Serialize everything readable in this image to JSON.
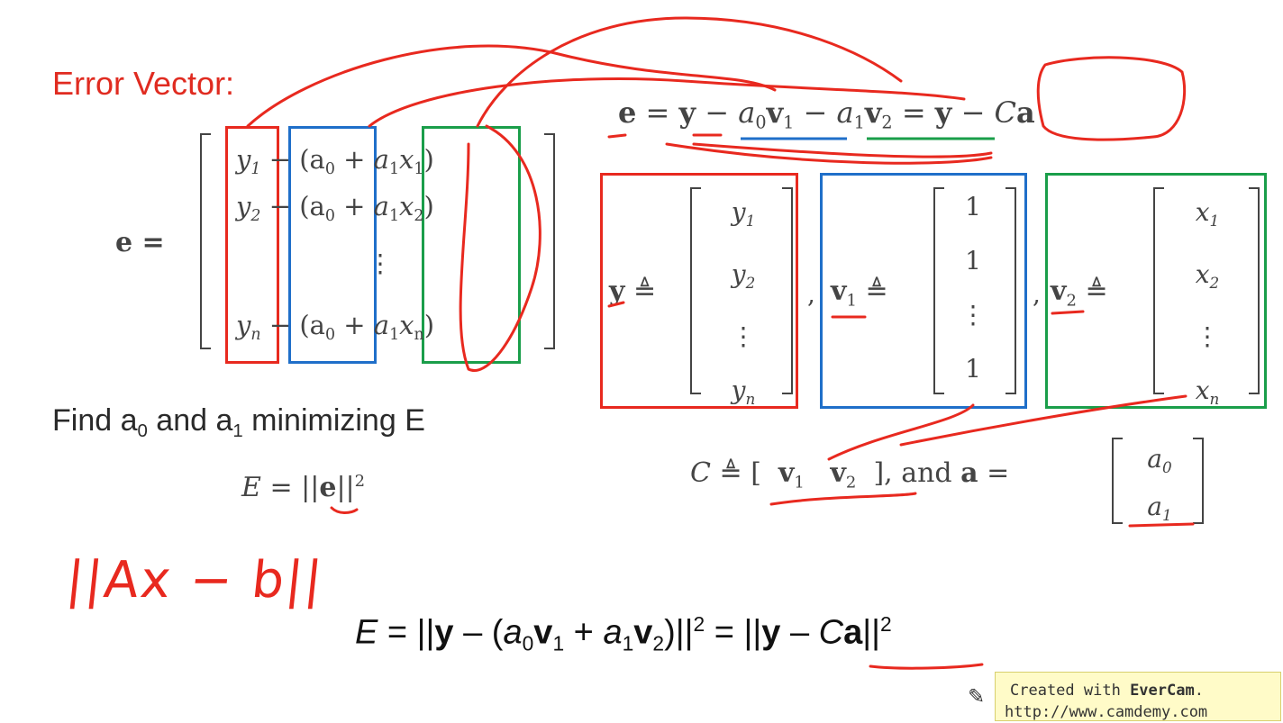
{
  "heading": {
    "error_vector": "Error Vector:"
  },
  "e_def": {
    "lhs": "e =",
    "rows": [
      {
        "y": "y",
        "ysub": "1",
        "mid": "− (a",
        "a0sub": "0",
        "plus": "+",
        "a1": "a",
        "a1sub": "1",
        "x": "x",
        "xsub": "1",
        "close": ")"
      },
      {
        "y": "y",
        "ysub": "2",
        "mid": "− (a",
        "a0sub": "0",
        "plus": "+",
        "a1": "a",
        "a1sub": "1",
        "x": "x",
        "xsub": "2",
        "close": ")"
      },
      {
        "y": "y",
        "ysub": "n",
        "mid": "− (a",
        "a0sub": "0",
        "plus": "+",
        "a1": "a",
        "a1sub": "1",
        "x": "x",
        "xsub": "n",
        "close": ")"
      }
    ],
    "vdots": "⋮"
  },
  "rhs_eq": {
    "e": "e",
    "eq1": "=",
    "y": "y",
    "minus1": "−",
    "a0": "a",
    "a0sub": "0",
    "v1": "v",
    "v1sub": "1",
    "minus2": "−",
    "a1": "a",
    "a1sub": "1",
    "v2": "v",
    "v2sub": "2",
    "eq2": "=",
    "y2": "y",
    "minus3": "−",
    "C": "C",
    "a": "a"
  },
  "defs": {
    "delta_eq": "≜",
    "comma": ",",
    "y_vec": {
      "label": "y",
      "entries": [
        "y",
        "y",
        "⋮",
        "y"
      ],
      "subs": [
        "1",
        "2",
        "",
        "n"
      ]
    },
    "v1_vec": {
      "label": "v",
      "label_sub": "1",
      "entries": [
        "1",
        "1",
        "⋮",
        "1"
      ]
    },
    "v2_vec": {
      "label": "v",
      "label_sub": "2",
      "entries": [
        "x",
        "x",
        "⋮",
        "x"
      ],
      "subs": [
        "1",
        "2",
        "",
        "n"
      ]
    }
  },
  "c_def": {
    "C": "C",
    "delta_eq": "≜",
    "v1": "v",
    "v1sub": "1",
    "v2": "v",
    "v2sub": "2",
    "and_text": "], and",
    "a": "a",
    "eq": "=",
    "a_entries": [
      "a",
      "a"
    ],
    "a_subs": [
      "0",
      "1"
    ]
  },
  "find": {
    "prefix": "Find a",
    "sub0": "0",
    "middle": " and a",
    "sub1": "1",
    "suffix": " minimizing E"
  },
  "E_def": {
    "E": "E",
    "eq": "= ||",
    "e": "e",
    "close": "||",
    "sup": "2"
  },
  "handwriting": {
    "text": "||Ax − b||"
  },
  "final_eq": {
    "E": "E",
    "eq1": " = ||",
    "y": "y",
    "minus": " – (",
    "a0": "a",
    "a0sub": "0",
    "v1": "v",
    "v1sub": "1",
    "plus": " + ",
    "a1": "a",
    "a1sub": "1",
    "v2": "v",
    "v2sub": "2",
    "close": ")||",
    "sup1": "2",
    "eq2": " = ||",
    "y2": "y",
    "minus2": " – ",
    "C": "C",
    "a": "a",
    "close2": "||",
    "sup2": "2"
  },
  "watermark": {
    "line1_prefix": "Created with ",
    "line1_brand": "EverCam",
    "line1_suffix": ".",
    "line2": "http://www.camdemy.com"
  },
  "colors": {
    "red": "#e8291f",
    "blue": "#1f6fc9",
    "green": "#1a9e4a",
    "ink": "#444444"
  }
}
